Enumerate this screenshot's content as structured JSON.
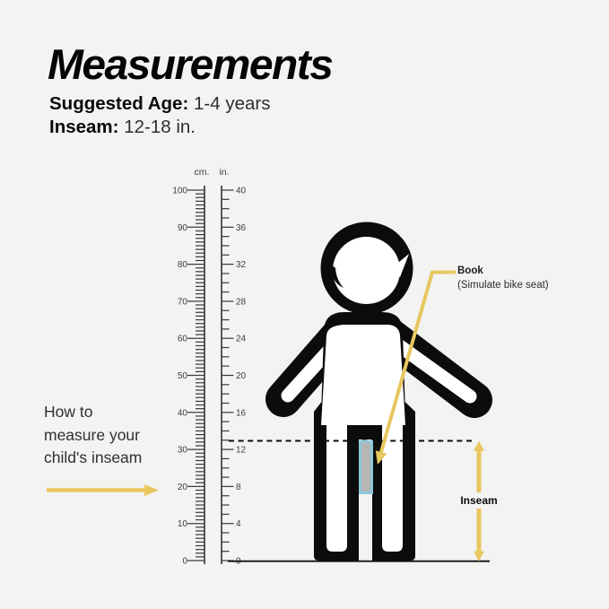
{
  "page": {
    "background": "#f3f3f1"
  },
  "header": {
    "title": "Measurements",
    "specs": [
      {
        "label": "Suggested Age:",
        "value": "1-4 years"
      },
      {
        "label": "Inseam:",
        "value": "12-18 in."
      }
    ]
  },
  "ruler": {
    "cm": {
      "unit": "cm.",
      "max": 100,
      "minor_step": 1,
      "major_step": 10,
      "labels": [
        100,
        90,
        80,
        70,
        60,
        50,
        40,
        30,
        20,
        10,
        0
      ]
    },
    "inch": {
      "unit": "in.",
      "max": 40,
      "minor_step": 1,
      "major_step": 4,
      "labels": [
        40,
        36,
        32,
        28,
        24,
        20,
        16,
        12,
        8,
        4,
        0
      ]
    }
  },
  "annotations": {
    "howto_lines": [
      "How to",
      "measure your",
      "child's inseam"
    ],
    "book_label": "Book",
    "book_sub": "(Simulate bike seat)",
    "inseam_label": "Inseam"
  },
  "colors": {
    "bg": "#f3f3f1",
    "accent": "#E8C75F",
    "black": "#0c0c0c",
    "book_border": "#8EC7DA",
    "book_fill": "#B5B5B5",
    "text": "#303030",
    "ruler": "#3d3d3d"
  }
}
